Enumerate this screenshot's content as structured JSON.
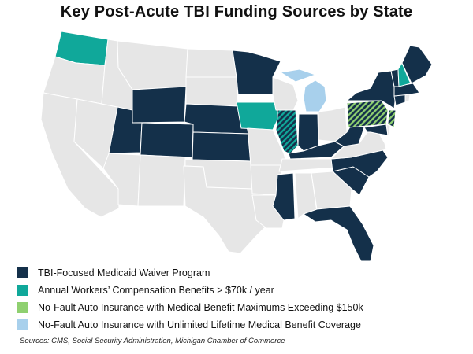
{
  "title": "Key Post-Acute TBI Funding Sources by State",
  "legend": {
    "items": [
      {
        "label": "TBI-Focused Medicaid Waiver Program",
        "color": "#14304a"
      },
      {
        "label": "Annual Workers’ Compensation Benefits > $70k / year",
        "color": "#10a89a"
      },
      {
        "label": "No-Fault Auto Insurance with Medical Benefit Maximums Exceeding $150k",
        "color": "#8fd070"
      },
      {
        "label": "No-Fault Auto Insurance with Unlimited Lifetime Medical Benefit Coverage",
        "color": "#a8d0ec"
      }
    ]
  },
  "source": "Sources: CMS, Social Security Administration, Michigan Chamber of Commerce",
  "map": {
    "colors": {
      "none": "#e6e6e6",
      "border": "#ffffff"
    },
    "categories": {
      "medicaid_waiver": [
        "WY",
        "UT",
        "CO",
        "NE",
        "KS",
        "MN",
        "IL",
        "IN",
        "KY",
        "WV",
        "PA",
        "NY",
        "NC",
        "SC",
        "MS",
        "FL",
        "ME",
        "VT",
        "MA",
        "CT",
        "NJ",
        "MD"
      ],
      "workers_comp": [
        "WA",
        "IA",
        "IL",
        "NH"
      ],
      "no_fault_150k": [
        "PA",
        "NJ"
      ],
      "no_fault_unlimited": [
        "MI"
      ]
    }
  }
}
